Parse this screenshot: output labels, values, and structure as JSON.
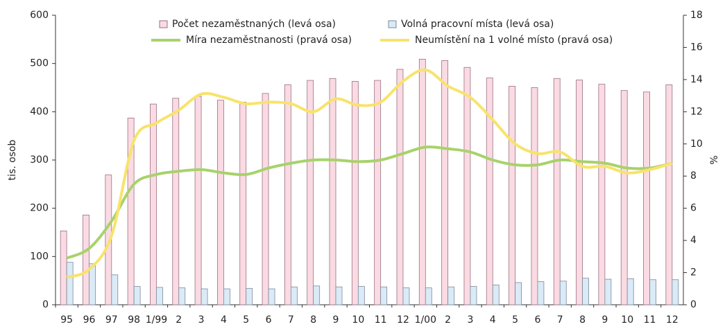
{
  "chart_data": {
    "type": "bar-line",
    "categories": [
      "95",
      "96",
      "97",
      "98",
      "1/99",
      "2",
      "3",
      "4",
      "5",
      "6",
      "7",
      "8",
      "9",
      "10",
      "11",
      "12",
      "1/00",
      "2",
      "3",
      "4",
      "5",
      "6",
      "7",
      "8",
      "9",
      "10",
      "11",
      "12"
    ],
    "series": [
      {
        "name": "Počet nezaměstnaných (levá osa)",
        "type": "bar",
        "color": "#fadbe3",
        "values": [
          153,
          186,
          269,
          387,
          416,
          428,
          432,
          424,
          420,
          438,
          456,
          465,
          469,
          463,
          465,
          488,
          509,
          506,
          492,
          470,
          453,
          450,
          469,
          466,
          457,
          444,
          441,
          456
        ]
      },
      {
        "name": "Volná pracovní místa (levá osa)",
        "type": "bar",
        "color": "#dbeaf7",
        "values": [
          88,
          85,
          62,
          38,
          36,
          35,
          33,
          33,
          34,
          33,
          37,
          39,
          37,
          38,
          37,
          35,
          35,
          37,
          38,
          41,
          46,
          48,
          49,
          55,
          53,
          54,
          52,
          52
        ]
      },
      {
        "name": "Míra nezaměstnanosti (pravá osa)",
        "type": "line",
        "axis": "y2",
        "color": "#a8d26a",
        "values": [
          2.9,
          3.5,
          5.2,
          7.5,
          8.1,
          8.3,
          8.4,
          8.2,
          8.1,
          8.5,
          8.8,
          9.0,
          9.0,
          8.9,
          9.0,
          9.4,
          9.8,
          9.7,
          9.5,
          9.0,
          8.7,
          8.7,
          9.0,
          8.9,
          8.8,
          8.5,
          8.5,
          8.8
        ]
      },
      {
        "name": "Neumístění na 1 volné místo (pravá osa)",
        "type": "line",
        "axis": "y2",
        "color": "#f8e36b",
        "values": [
          1.7,
          2.2,
          4.3,
          10.2,
          11.3,
          12.1,
          13.1,
          12.9,
          12.5,
          12.6,
          12.5,
          12.0,
          12.8,
          12.4,
          12.6,
          13.9,
          14.6,
          13.6,
          12.9,
          11.5,
          10.0,
          9.4,
          9.5,
          8.6,
          8.6,
          8.2,
          8.4,
          8.8
        ]
      }
    ],
    "ylabel": "tis. osob",
    "y2label": "%",
    "ylim": [
      0,
      600
    ],
    "yticks": [
      0,
      100,
      200,
      300,
      400,
      500,
      600
    ],
    "y2lim": [
      0,
      18
    ],
    "y2ticks": [
      0,
      2,
      4,
      6,
      8,
      10,
      12,
      14,
      16,
      18
    ]
  }
}
